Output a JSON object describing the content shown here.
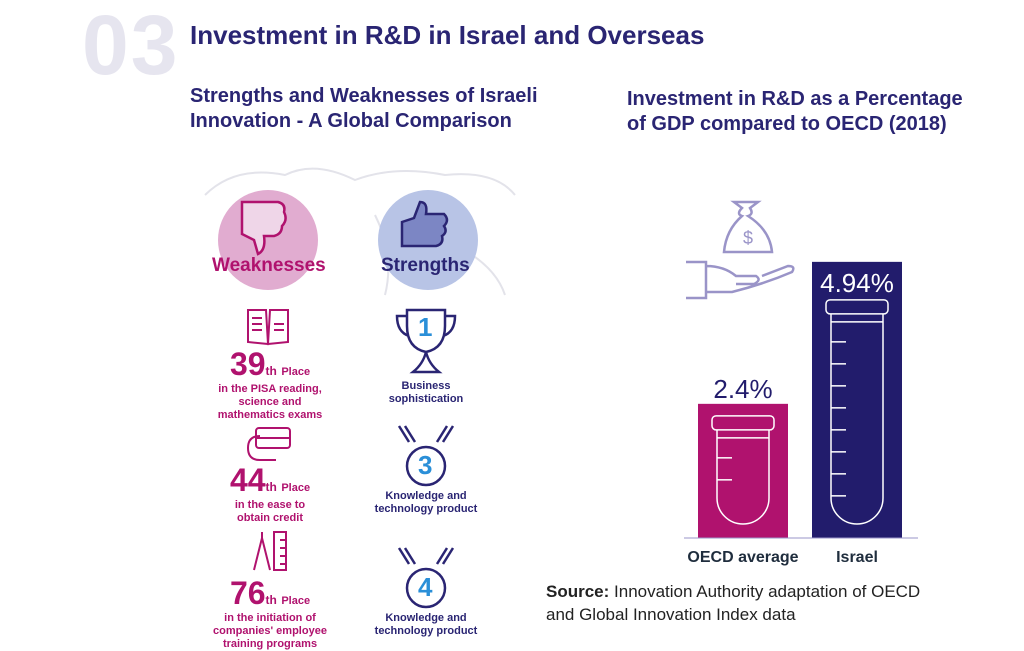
{
  "section_number": "03",
  "title": "Investment in R&D in Israel and Overseas",
  "left": {
    "subtitle": [
      "Strengths and Weaknesses of Israeli",
      "Innovation - A Global Comparison"
    ],
    "weaknesses_label": "Weaknesses",
    "strengths_label": "Strengths",
    "weaknesses": [
      {
        "rank": "39",
        "suffix": "th",
        "place": "Place",
        "text": [
          "in the PISA reading,",
          "science and",
          "mathematics exams"
        ]
      },
      {
        "rank": "44",
        "suffix": "th",
        "place": "Place",
        "text": [
          "in the ease to",
          "obtain credit"
        ]
      },
      {
        "rank": "76",
        "suffix": "th",
        "place": "Place",
        "text": [
          "in the initiation of",
          "companies' employee",
          "training programs"
        ]
      }
    ],
    "strengths": [
      {
        "rank": "1",
        "text": [
          "Business",
          "sophistication"
        ]
      },
      {
        "rank": "3",
        "text": [
          "Knowledge and",
          "technology product"
        ]
      },
      {
        "rank": "4",
        "text": [
          "Knowledge and",
          "technology product"
        ]
      }
    ]
  },
  "colors": {
    "magenta": "#b0126e",
    "navy": "#221c6c"
  },
  "chart_data": {
    "type": "bar",
    "title": "Investment in R&D as a Percentage of GDP compared to OECD (2018)",
    "title_lines": [
      "Investment in R&D as a Percentage",
      "of GDP compared to OECD (2018)"
    ],
    "categories": [
      "OECD average",
      "Israel"
    ],
    "values": [
      2.4,
      4.94
    ],
    "labels": [
      "2.4%",
      "4.94%"
    ],
    "colors": [
      "#b0126e",
      "#221c6c"
    ],
    "unit": "% of GDP"
  },
  "source": {
    "label": "Source:",
    "text": " Innovation Authority adaptation of OECD",
    "text2": "and Global Innovation Index data"
  }
}
